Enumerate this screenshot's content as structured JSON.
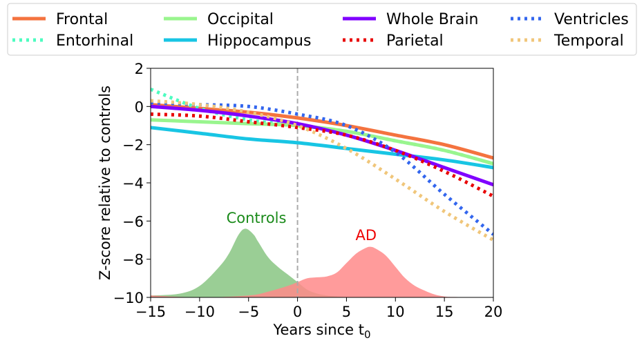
{
  "chart_data": {
    "type": "line",
    "title": "",
    "xlabel": "Years since t",
    "xlabel_subscript": "0",
    "ylabel": "Z-score relative to controls",
    "xlim": [
      -15,
      20
    ],
    "ylim": [
      -10,
      2
    ],
    "xticks": [
      -15,
      -10,
      -5,
      0,
      5,
      10,
      15,
      20
    ],
    "yticks": [
      2,
      0,
      -2,
      -4,
      -6,
      -8,
      -10
    ],
    "xtick_labels": [
      "−15",
      "−10",
      "−5",
      "0",
      "5",
      "10",
      "15",
      "20"
    ],
    "ytick_labels": [
      "2",
      "0",
      "−2",
      "−4",
      "−6",
      "−8",
      "−10"
    ],
    "grid": false,
    "legend_placement": "top",
    "vline": {
      "x": 0,
      "color": "#aaaaaa",
      "style": "dashed"
    },
    "x": [
      -15,
      -10,
      -5,
      0,
      5,
      10,
      15,
      20
    ],
    "series": [
      {
        "name": "Frontal",
        "color": "#f4733f",
        "style": "solid",
        "values": [
          0.1,
          -0.1,
          -0.3,
          -0.6,
          -1.0,
          -1.5,
          -2.0,
          -2.7
        ]
      },
      {
        "name": "Entorhinal",
        "color": "#4dfcc0",
        "style": "dotted",
        "values": [
          0.9,
          -0.1,
          -0.7,
          -1.0,
          -1.3,
          -1.8,
          -2.3,
          -3.0
        ]
      },
      {
        "name": "Occipital",
        "color": "#99f58e",
        "style": "solid",
        "values": [
          -0.7,
          -0.8,
          -0.9,
          -1.0,
          -1.3,
          -1.8,
          -2.3,
          -3.0
        ]
      },
      {
        "name": "Hippocampus",
        "color": "#18c5e4",
        "style": "solid",
        "values": [
          -1.1,
          -1.4,
          -1.7,
          -1.9,
          -2.2,
          -2.5,
          -2.8,
          -3.2
        ]
      },
      {
        "name": "Whole Brain",
        "color": "#8000ff",
        "style": "solid",
        "values": [
          0.0,
          -0.2,
          -0.5,
          -0.9,
          -1.5,
          -2.3,
          -3.2,
          -4.1
        ]
      },
      {
        "name": "Parietal",
        "color": "#e80000",
        "style": "dotted",
        "values": [
          -0.4,
          -0.5,
          -0.8,
          -1.1,
          -1.5,
          -2.3,
          -3.4,
          -4.7
        ]
      },
      {
        "name": "Ventricles",
        "color": "#3366ee",
        "style": "dotted",
        "values": [
          0.2,
          0.1,
          0.0,
          -0.4,
          -1.0,
          -2.4,
          -4.6,
          -6.7
        ]
      },
      {
        "name": "Temporal",
        "color": "#f0c67a",
        "style": "dotted",
        "values": [
          0.3,
          0.1,
          -0.3,
          -1.0,
          -2.2,
          -3.8,
          -5.5,
          -7.0
        ]
      }
    ],
    "distributions": [
      {
        "name": "Controls",
        "color": "#8fc98a",
        "label_color": "#1a8a1a",
        "x": [
          -15,
          -12,
          -10,
          -8,
          -7,
          -6,
          -5.3,
          -4.5,
          -4,
          -3,
          -2,
          -1,
          0,
          1,
          2,
          3,
          4,
          5
        ],
        "height": [
          0.1,
          0.2,
          0.6,
          1.6,
          2.3,
          3.3,
          3.6,
          3.3,
          2.9,
          2.1,
          1.6,
          1.2,
          0.8,
          0.4,
          0.2,
          0.1,
          0.05,
          0
        ]
      },
      {
        "name": "AD",
        "color": "#ff8a8a",
        "label_color": "#ee0000",
        "x": [
          -15,
          -10,
          -5,
          -3,
          -1,
          0,
          1,
          2,
          3,
          4,
          5,
          6,
          7,
          7.5,
          8,
          9,
          10,
          11,
          12,
          13,
          14,
          15,
          16,
          20
        ],
        "height": [
          0.1,
          0.0,
          0.1,
          0.3,
          0.6,
          0.8,
          1.0,
          1.05,
          1.1,
          1.3,
          1.8,
          2.3,
          2.6,
          2.65,
          2.55,
          2.2,
          1.6,
          1.0,
          0.6,
          0.35,
          0.15,
          0.05,
          0.02,
          0
        ]
      }
    ],
    "annotations": [
      {
        "text": "Controls",
        "x": -4.2,
        "y": -6.1
      },
      {
        "text": "AD",
        "x": 7.0,
        "y": -7.0
      }
    ]
  }
}
